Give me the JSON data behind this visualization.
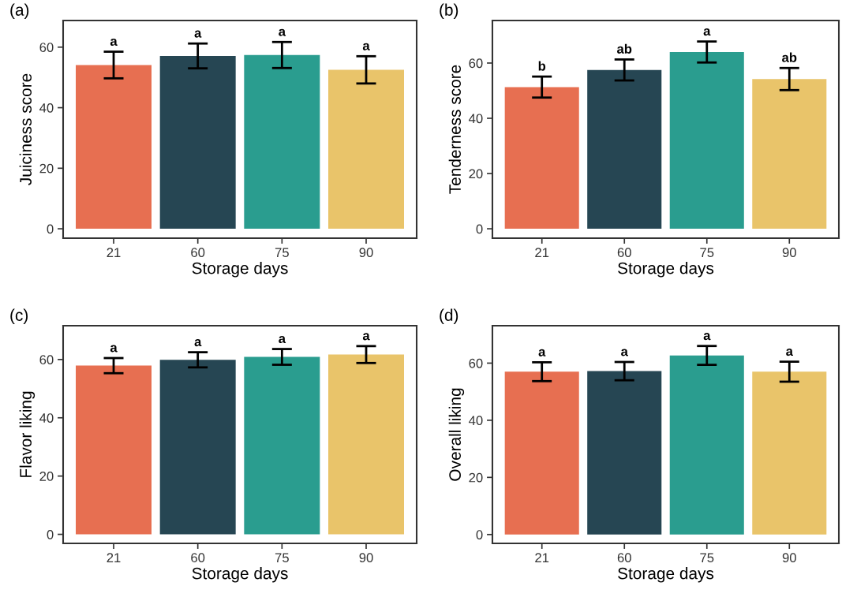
{
  "chart_data": [
    {
      "type": "bar",
      "title": "(a)",
      "categories": [
        "21",
        "60",
        "75",
        "90"
      ],
      "values": [
        54.1,
        57.1,
        57.4,
        52.5
      ],
      "errors": [
        4.4,
        4.1,
        4.3,
        4.5
      ],
      "colors": [
        "#e76f51",
        "#264653",
        "#2a9d8f",
        "#e9c46a"
      ],
      "xlabel": "Storage days",
      "ylabel": "Juiciness score",
      "ylim": [
        -3.1,
        68.8
      ],
      "yticks": [
        0,
        20,
        40,
        60
      ],
      "grid": false,
      "annotations": [
        {
          "text": "a",
          "x": "21",
          "y": 58.5
        },
        {
          "text": "a",
          "x": "60",
          "y": 61.2
        },
        {
          "text": "a",
          "x": "75",
          "y": 61.7
        },
        {
          "text": "a",
          "x": "90",
          "y": 57.0
        }
      ]
    },
    {
      "type": "bar",
      "title": "(b)",
      "categories": [
        "21",
        "60",
        "75",
        "90"
      ],
      "values": [
        51.3,
        57.5,
        64.0,
        54.2
      ],
      "errors": [
        3.8,
        3.8,
        3.8,
        4.0
      ],
      "colors": [
        "#e76f51",
        "#264653",
        "#2a9d8f",
        "#e9c46a"
      ],
      "xlabel": "Storage days",
      "ylabel": "Tenderness score",
      "ylim": [
        -3.4,
        75.4
      ],
      "yticks": [
        0,
        20,
        40,
        60
      ],
      "grid": false,
      "annotations": [
        {
          "text": "b",
          "x": "21",
          "y": 55.1
        },
        {
          "text": "ab",
          "x": "60",
          "y": 61.3
        },
        {
          "text": "a",
          "x": "75",
          "y": 67.8
        },
        {
          "text": "ab",
          "x": "90",
          "y": 58.2
        }
      ]
    },
    {
      "type": "bar",
      "title": "(c)",
      "categories": [
        "21",
        "60",
        "75",
        "90"
      ],
      "values": [
        57.9,
        59.9,
        60.9,
        61.7
      ],
      "errors": [
        2.6,
        2.6,
        2.7,
        2.9
      ],
      "colors": [
        "#e76f51",
        "#264653",
        "#2a9d8f",
        "#e9c46a"
      ],
      "xlabel": "Storage days",
      "ylabel": "Flavor liking",
      "ylim": [
        -3.1,
        71.6
      ],
      "yticks": [
        0,
        20,
        40,
        60
      ],
      "grid": false,
      "annotations": [
        {
          "text": "a",
          "x": "21",
          "y": 60.5
        },
        {
          "text": "a",
          "x": "60",
          "y": 62.5
        },
        {
          "text": "a",
          "x": "75",
          "y": 63.6
        },
        {
          "text": "a",
          "x": "90",
          "y": 64.6
        }
      ]
    },
    {
      "type": "bar",
      "title": "(d)",
      "categories": [
        "21",
        "60",
        "75",
        "90"
      ],
      "values": [
        57.0,
        57.2,
        62.7,
        57.0
      ],
      "errors": [
        3.3,
        3.2,
        3.3,
        3.5
      ],
      "colors": [
        "#e76f51",
        "#264653",
        "#2a9d8f",
        "#e9c46a"
      ],
      "xlabel": "Storage days",
      "ylabel": "Overall liking",
      "ylim": [
        -3.1,
        73.1
      ],
      "yticks": [
        0,
        20,
        40,
        60
      ],
      "grid": false,
      "annotations": [
        {
          "text": "a",
          "x": "21",
          "y": 60.3
        },
        {
          "text": "a",
          "x": "60",
          "y": 60.4
        },
        {
          "text": "a",
          "x": "75",
          "y": 66.0
        },
        {
          "text": "a",
          "x": "90",
          "y": 60.5
        }
      ]
    }
  ]
}
